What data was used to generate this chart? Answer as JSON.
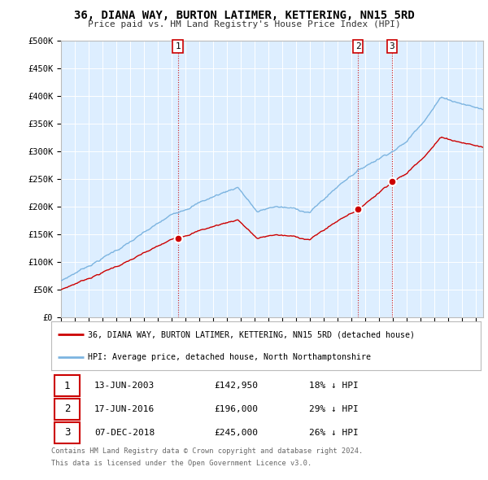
{
  "title": "36, DIANA WAY, BURTON LATIMER, KETTERING, NN15 5RD",
  "subtitle": "Price paid vs. HM Land Registry's House Price Index (HPI)",
  "ylabel_ticks": [
    "£0",
    "£50K",
    "£100K",
    "£150K",
    "£200K",
    "£250K",
    "£300K",
    "£350K",
    "£400K",
    "£450K",
    "£500K"
  ],
  "ytick_values": [
    0,
    50000,
    100000,
    150000,
    200000,
    250000,
    300000,
    350000,
    400000,
    450000,
    500000
  ],
  "ylim": [
    0,
    500000
  ],
  "hpi_color": "#7cb4e0",
  "price_color": "#cc0000",
  "transactions": [
    {
      "num": 1,
      "date": "13-JUN-2003",
      "price": 142950,
      "price_str": "£142,950",
      "pct": "18%",
      "direction": "↓",
      "x_year": 2003.44
    },
    {
      "num": 2,
      "date": "17-JUN-2016",
      "price": 196000,
      "price_str": "£196,000",
      "pct": "29%",
      "direction": "↓",
      "x_year": 2016.46
    },
    {
      "num": 3,
      "date": "07-DEC-2018",
      "price": 245000,
      "price_str": "£245,000",
      "pct": "26%",
      "direction": "↓",
      "x_year": 2018.92
    }
  ],
  "legend_label_price": "36, DIANA WAY, BURTON LATIMER, KETTERING, NN15 5RD (detached house)",
  "legend_label_hpi": "HPI: Average price, detached house, North Northamptonshire",
  "footer_line1": "Contains HM Land Registry data © Crown copyright and database right 2024.",
  "footer_line2": "This data is licensed under the Open Government Licence v3.0.",
  "bg_color": "#ffffff",
  "plot_bg_color": "#ddeeff",
  "grid_color": "#ffffff",
  "xmin": 1995,
  "xmax": 2025.5
}
